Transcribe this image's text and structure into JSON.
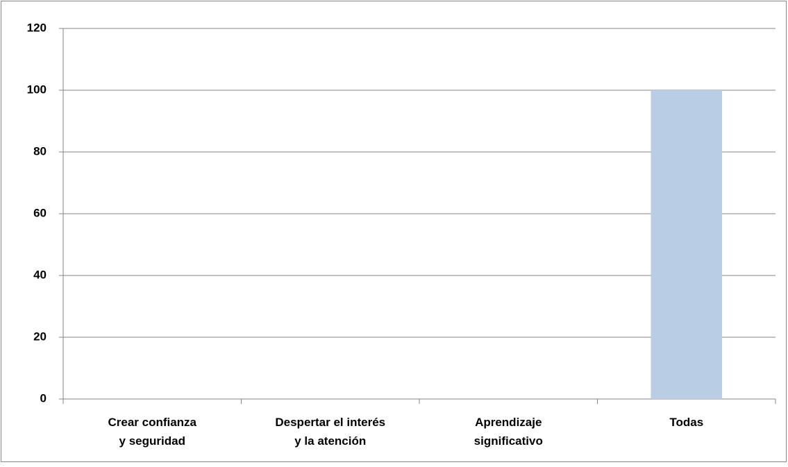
{
  "chart_data": {
    "type": "bar",
    "categories": [
      "Crear confianza y seguridad",
      "Despertar el interés y la atención",
      "Aprendizaje significativo",
      "Todas"
    ],
    "values": [
      0,
      0,
      0,
      100
    ],
    "color": "#b9cde5",
    "ylim": [
      0,
      120
    ],
    "yticks": [
      0,
      20,
      40,
      60,
      80,
      100,
      120
    ],
    "grid": true
  }
}
